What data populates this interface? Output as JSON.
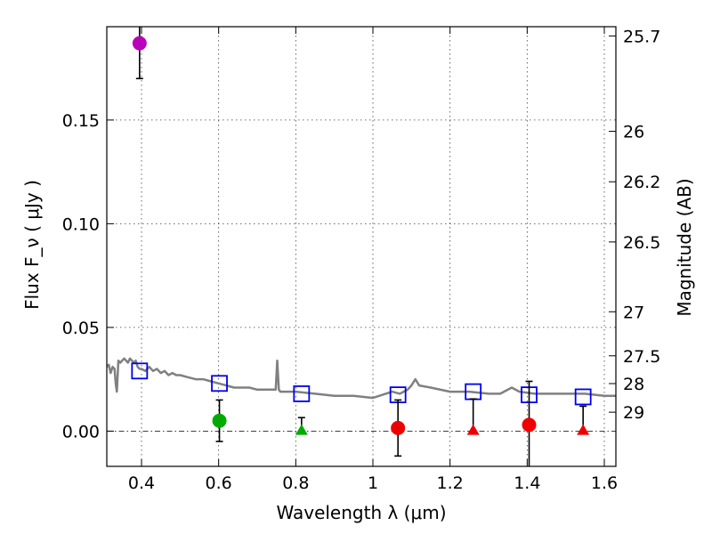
{
  "chart_data": {
    "type": "scatter",
    "xlabel": "Wavelength  λ (μm)",
    "ylabel": "Flux  F_ν  ( μJy )",
    "y2label": "Magnitude (AB)",
    "xlim": [
      0.31,
      1.63
    ],
    "ylim": [
      -0.017,
      0.195
    ],
    "x_ticks": [
      0.4,
      0.6,
      0.8,
      1.0,
      1.2,
      1.4,
      1.6
    ],
    "x_tick_labels": [
      "0.4",
      "0.6",
      "0.8",
      "1",
      "1.2",
      "1.4",
      "1.6"
    ],
    "y_ticks": [
      0.0,
      0.05,
      0.1,
      0.15
    ],
    "y_tick_labels": [
      "0.00",
      "0.05",
      "0.10",
      "0.15"
    ],
    "y2_ticks": [
      25.7,
      26,
      26.2,
      26.5,
      27,
      27.5,
      28,
      29
    ],
    "y2_tick_labels": [
      "25.7",
      "26",
      "26.2",
      "26.5",
      "27",
      "27.5",
      "28",
      "29"
    ],
    "grid": true,
    "zero_line": true,
    "colors": {
      "model": "#808080",
      "model_photometry": "#0000ee",
      "purple": "#bb00bb",
      "green": "#00aa00",
      "red": "#ee0000",
      "errorbar": "#000000"
    },
    "model_spectrum": {
      "x": [
        0.31,
        0.315,
        0.32,
        0.325,
        0.33,
        0.333,
        0.336,
        0.34,
        0.345,
        0.35,
        0.355,
        0.36,
        0.365,
        0.37,
        0.375,
        0.38,
        0.385,
        0.39,
        0.395,
        0.4,
        0.41,
        0.42,
        0.43,
        0.44,
        0.45,
        0.46,
        0.47,
        0.48,
        0.49,
        0.5,
        0.52,
        0.54,
        0.56,
        0.58,
        0.6,
        0.62,
        0.64,
        0.66,
        0.68,
        0.7,
        0.72,
        0.74,
        0.748,
        0.752,
        0.756,
        0.76,
        0.8,
        0.85,
        0.9,
        0.95,
        1.0,
        1.05,
        1.07,
        1.09,
        1.1,
        1.11,
        1.12,
        1.15,
        1.2,
        1.25,
        1.3,
        1.33,
        1.36,
        1.38,
        1.42,
        1.5,
        1.55,
        1.6,
        1.63
      ],
      "y": [
        0.031,
        0.032,
        0.028,
        0.031,
        0.03,
        0.023,
        0.019,
        0.034,
        0.033,
        0.034,
        0.035,
        0.034,
        0.033,
        0.035,
        0.034,
        0.033,
        0.034,
        0.031,
        0.03,
        0.03,
        0.029,
        0.031,
        0.029,
        0.03,
        0.028,
        0.029,
        0.027,
        0.028,
        0.027,
        0.027,
        0.026,
        0.025,
        0.025,
        0.024,
        0.023,
        0.022,
        0.021,
        0.021,
        0.021,
        0.02,
        0.02,
        0.02,
        0.02,
        0.034,
        0.02,
        0.019,
        0.019,
        0.018,
        0.017,
        0.017,
        0.016,
        0.019,
        0.018,
        0.02,
        0.022,
        0.025,
        0.022,
        0.021,
        0.019,
        0.019,
        0.018,
        0.018,
        0.021,
        0.019,
        0.018,
        0.018,
        0.018,
        0.017,
        0.017
      ]
    },
    "model_photometry": {
      "x": [
        0.395,
        0.602,
        0.815,
        1.065,
        1.26,
        1.405,
        1.545
      ],
      "y": [
        0.029,
        0.023,
        0.018,
        0.0175,
        0.019,
        0.0175,
        0.0165
      ]
    },
    "observed_points": [
      {
        "x": 0.395,
        "y": 0.187,
        "err_low": 0.017,
        "err_high": 0.012,
        "marker": "circle",
        "color": "purple"
      },
      {
        "x": 0.602,
        "y": 0.005,
        "err_low": 0.01,
        "err_high": 0.01,
        "marker": "circle",
        "color": "green"
      },
      {
        "x": 1.065,
        "y": 0.0015,
        "err_low": 0.0135,
        "err_high": 0.0135,
        "marker": "circle",
        "color": "red"
      },
      {
        "x": 1.405,
        "y": 0.003,
        "err_low": 0.024,
        "err_high": 0.021,
        "marker": "circle",
        "color": "red"
      }
    ],
    "upper_limits": [
      {
        "x": 0.815,
        "y": 0.0,
        "err_high": 0.0065,
        "marker": "triangle",
        "color": "green"
      },
      {
        "x": 1.26,
        "y": 0.0,
        "err_high": 0.0155,
        "marker": "triangle",
        "color": "red"
      },
      {
        "x": 1.545,
        "y": 0.0,
        "err_high": 0.012,
        "marker": "triangle",
        "color": "red"
      }
    ]
  }
}
